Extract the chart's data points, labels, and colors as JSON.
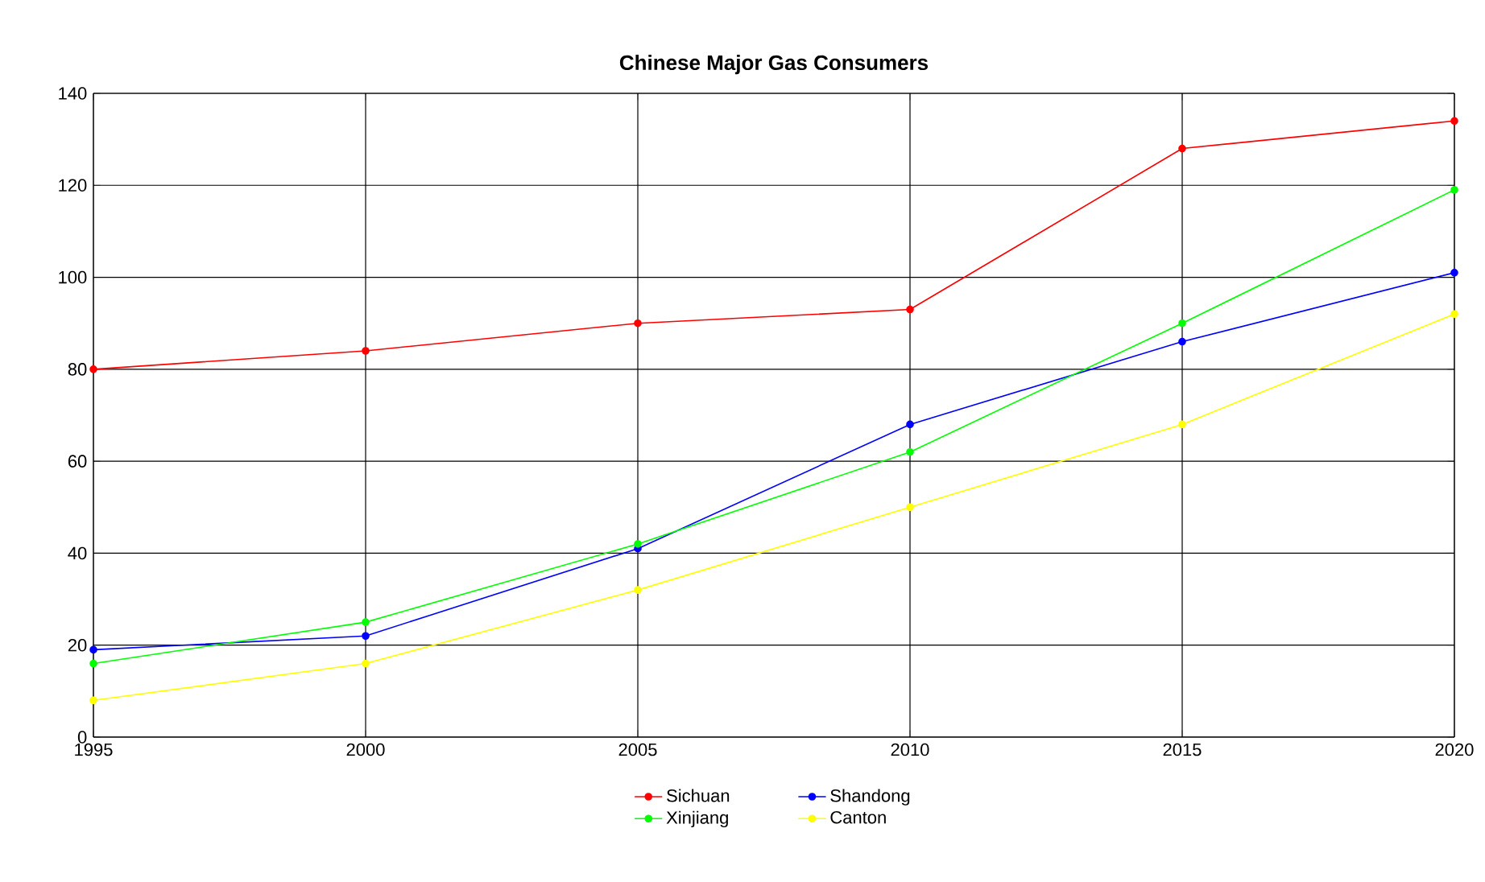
{
  "chart_data": {
    "type": "line",
    "title": "Chinese Major Gas Consumers",
    "x": [
      1995,
      2000,
      2005,
      2010,
      2015,
      2020
    ],
    "series": [
      {
        "name": "Sichuan",
        "color": "#ff0000",
        "values": [
          80,
          84,
          90,
          93,
          128,
          134
        ]
      },
      {
        "name": "Shandong",
        "color": "#0000ff",
        "values": [
          19,
          22,
          41,
          68,
          86,
          101
        ]
      },
      {
        "name": "Xinjiang",
        "color": "#00ff00",
        "values": [
          16,
          25,
          42,
          62,
          90,
          119
        ]
      },
      {
        "name": "Canton",
        "color": "#ffff00",
        "values": [
          8,
          16,
          32,
          50,
          68,
          92
        ]
      }
    ],
    "xlim": [
      1995,
      2020
    ],
    "xticks": [
      1995,
      2000,
      2005,
      2010,
      2015,
      2020
    ],
    "ylim": [
      0,
      140
    ],
    "yticks": [
      0,
      20,
      40,
      60,
      80,
      100,
      120,
      140
    ],
    "grid": true,
    "legend": "bottom",
    "marker": "circle",
    "line_style": "solid"
  }
}
